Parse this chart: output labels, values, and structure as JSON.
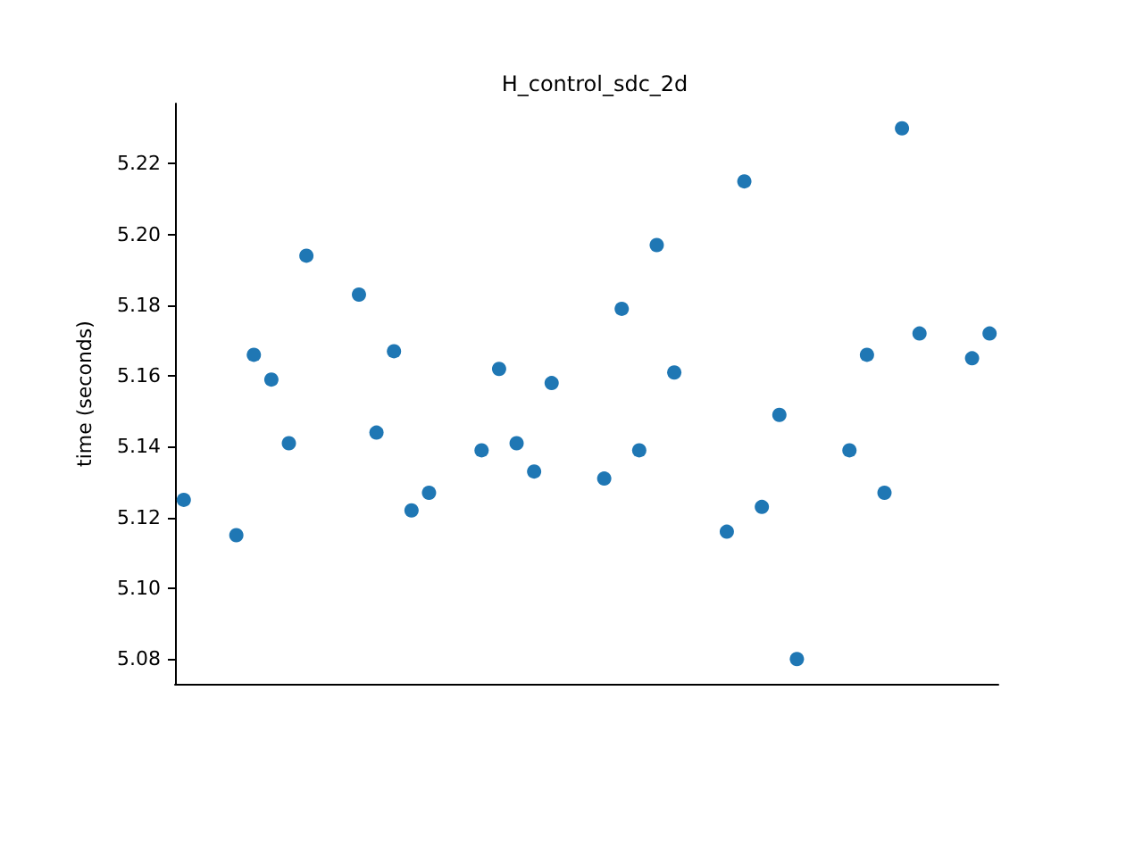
{
  "chart_data": {
    "type": "scatter",
    "title": "H_control_sdc_2d",
    "ylabel": "time (seconds)",
    "categories": [
      null,
      null,
      null,
      null,
      null,
      null,
      null,
      null,
      null,
      null,
      null,
      null,
      null,
      null,
      null,
      null,
      null,
      null,
      null,
      null,
      null,
      null,
      null,
      null,
      null,
      null,
      null,
      null,
      null,
      null,
      null,
      null,
      null,
      null,
      null,
      null,
      null,
      null,
      null,
      null,
      null,
      null,
      null,
      null,
      null,
      null,
      null
    ],
    "series": [
      {
        "color": "#1f77b4",
        "values": [
          5.125,
          null,
          null,
          5.115,
          5.166,
          5.159,
          5.141,
          5.194,
          null,
          null,
          5.183,
          5.144,
          5.167,
          5.122,
          5.127,
          null,
          null,
          5.139,
          5.162,
          5.141,
          5.133,
          5.158,
          null,
          null,
          5.131,
          5.179,
          5.139,
          5.197,
          5.161,
          null,
          null,
          5.116,
          5.215,
          5.123,
          5.149,
          5.08,
          null,
          null,
          5.139,
          5.166,
          5.127,
          5.23,
          5.172,
          null,
          null,
          5.165,
          5.172
        ]
      }
    ],
    "ylim": [
      5.073,
      5.237
    ],
    "yticks": [
      {
        "value": 5.08,
        "label": "5.08"
      },
      {
        "value": 5.1,
        "label": "5.10"
      },
      {
        "value": 5.12,
        "label": "5.12"
      },
      {
        "value": 5.14,
        "label": "5.14"
      },
      {
        "value": 5.16,
        "label": "5.16"
      },
      {
        "value": 5.18,
        "label": "5.18"
      },
      {
        "value": 5.2,
        "label": "5.20"
      },
      {
        "value": 5.22,
        "label": "5.22"
      }
    ],
    "tick_labels": "y",
    "grid": false,
    "marker": "circle"
  }
}
